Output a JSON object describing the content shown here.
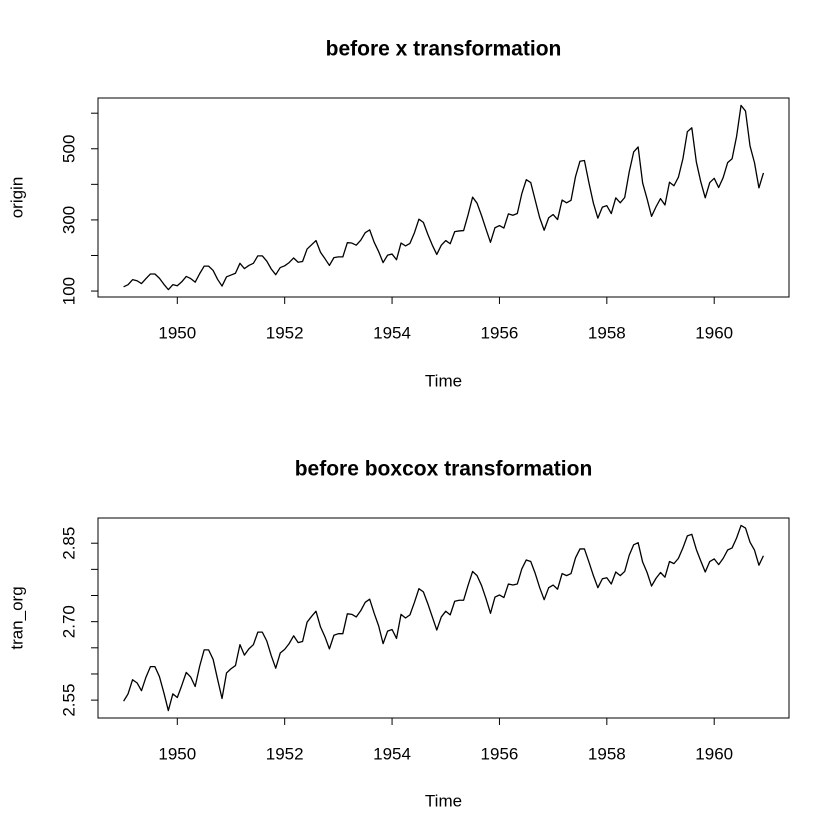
{
  "chart_data": [
    {
      "type": "line",
      "title": "before x transformation",
      "xlabel": "Time",
      "ylabel": "origin",
      "x": [
        1949,
        1949.083,
        1949.167,
        1949.25,
        1949.333,
        1949.417,
        1949.5,
        1949.583,
        1949.667,
        1949.75,
        1949.833,
        1949.917,
        1950,
        1950.083,
        1950.167,
        1950.25,
        1950.333,
        1950.417,
        1950.5,
        1950.583,
        1950.667,
        1950.75,
        1950.833,
        1950.917,
        1951,
        1951.083,
        1951.167,
        1951.25,
        1951.333,
        1951.417,
        1951.5,
        1951.583,
        1951.667,
        1951.75,
        1951.833,
        1951.917,
        1952,
        1952.083,
        1952.167,
        1952.25,
        1952.333,
        1952.417,
        1952.5,
        1952.583,
        1952.667,
        1952.75,
        1952.833,
        1952.917,
        1953,
        1953.083,
        1953.167,
        1953.25,
        1953.333,
        1953.417,
        1953.5,
        1953.583,
        1953.667,
        1953.75,
        1953.833,
        1953.917,
        1954,
        1954.083,
        1954.167,
        1954.25,
        1954.333,
        1954.417,
        1954.5,
        1954.583,
        1954.667,
        1954.75,
        1954.833,
        1954.917,
        1955,
        1955.083,
        1955.167,
        1955.25,
        1955.333,
        1955.417,
        1955.5,
        1955.583,
        1955.667,
        1955.75,
        1955.833,
        1955.917,
        1956,
        1956.083,
        1956.167,
        1956.25,
        1956.333,
        1956.417,
        1956.5,
        1956.583,
        1956.667,
        1956.75,
        1956.833,
        1956.917,
        1957,
        1957.083,
        1957.167,
        1957.25,
        1957.333,
        1957.417,
        1957.5,
        1957.583,
        1957.667,
        1957.75,
        1957.833,
        1957.917,
        1958,
        1958.083,
        1958.167,
        1958.25,
        1958.333,
        1958.417,
        1958.5,
        1958.583,
        1958.667,
        1958.75,
        1958.833,
        1958.917,
        1959,
        1959.083,
        1959.167,
        1959.25,
        1959.333,
        1959.417,
        1959.5,
        1959.583,
        1959.667,
        1959.75,
        1959.833,
        1959.917,
        1960,
        1960.083,
        1960.167,
        1960.25,
        1960.333,
        1960.417,
        1960.5,
        1960.583,
        1960.667,
        1960.75,
        1960.833,
        1960.917
      ],
      "values": [
        112,
        118,
        132,
        129,
        121,
        135,
        148,
        148,
        136,
        119,
        104,
        118,
        115,
        126,
        141,
        135,
        125,
        149,
        170,
        170,
        158,
        133,
        114,
        140,
        145,
        150,
        178,
        163,
        172,
        178,
        199,
        199,
        184,
        162,
        146,
        166,
        171,
        180,
        193,
        181,
        183,
        218,
        230,
        242,
        209,
        191,
        172,
        194,
        196,
        196,
        236,
        235,
        229,
        243,
        264,
        272,
        237,
        211,
        180,
        201,
        204,
        188,
        235,
        227,
        234,
        264,
        302,
        293,
        259,
        229,
        203,
        229,
        242,
        233,
        267,
        269,
        270,
        315,
        364,
        347,
        312,
        274,
        237,
        278,
        284,
        277,
        317,
        313,
        318,
        374,
        413,
        405,
        355,
        306,
        271,
        306,
        315,
        301,
        356,
        348,
        355,
        422,
        465,
        467,
        404,
        347,
        305,
        336,
        340,
        318,
        362,
        348,
        363,
        435,
        491,
        505,
        404,
        359,
        310,
        337,
        360,
        342,
        406,
        396,
        420,
        472,
        548,
        559,
        463,
        407,
        362,
        405,
        417,
        391,
        419,
        461,
        472,
        535,
        622,
        606,
        508,
        461,
        390,
        432
      ],
      "color": "#000000",
      "xlim": [
        1948.523,
        1961.393
      ],
      "xticks": [
        1950,
        1952,
        1954,
        1956,
        1958,
        1960
      ],
      "ylim": [
        83.28,
        642.72
      ],
      "yticks": [
        100,
        {
          "value": 200
        },
        300,
        {
          "value": 400
        },
        500,
        {
          "value": 600
        }
      ]
    },
    {
      "type": "line",
      "title": "before boxcox transformation",
      "xlabel": "Time",
      "ylabel": "tran_org",
      "x": [
        1949,
        1949.083,
        1949.167,
        1949.25,
        1949.333,
        1949.417,
        1949.5,
        1949.583,
        1949.667,
        1949.75,
        1949.833,
        1949.917,
        1950,
        1950.083,
        1950.167,
        1950.25,
        1950.333,
        1950.417,
        1950.5,
        1950.583,
        1950.667,
        1950.75,
        1950.833,
        1950.917,
        1951,
        1951.083,
        1951.167,
        1951.25,
        1951.333,
        1951.417,
        1951.5,
        1951.583,
        1951.667,
        1951.75,
        1951.833,
        1951.917,
        1952,
        1952.083,
        1952.167,
        1952.25,
        1952.333,
        1952.417,
        1952.5,
        1952.583,
        1952.667,
        1952.75,
        1952.833,
        1952.917,
        1953,
        1953.083,
        1953.167,
        1953.25,
        1953.333,
        1953.417,
        1953.5,
        1953.583,
        1953.667,
        1953.75,
        1953.833,
        1953.917,
        1954,
        1954.083,
        1954.167,
        1954.25,
        1954.333,
        1954.417,
        1954.5,
        1954.583,
        1954.667,
        1954.75,
        1954.833,
        1954.917,
        1955,
        1955.083,
        1955.167,
        1955.25,
        1955.333,
        1955.417,
        1955.5,
        1955.583,
        1955.667,
        1955.75,
        1955.833,
        1955.917,
        1956,
        1956.083,
        1956.167,
        1956.25,
        1956.333,
        1956.417,
        1956.5,
        1956.583,
        1956.667,
        1956.75,
        1956.833,
        1956.917,
        1957,
        1957.083,
        1957.167,
        1957.25,
        1957.333,
        1957.417,
        1957.5,
        1957.583,
        1957.667,
        1957.75,
        1957.833,
        1957.917,
        1958,
        1958.083,
        1958.167,
        1958.25,
        1958.333,
        1958.417,
        1958.5,
        1958.583,
        1958.667,
        1958.75,
        1958.833,
        1958.917,
        1959,
        1959.083,
        1959.167,
        1959.25,
        1959.333,
        1959.417,
        1959.5,
        1959.583,
        1959.667,
        1959.75,
        1959.833,
        1959.917,
        1960,
        1960.083,
        1960.167,
        1960.25,
        1960.333,
        1960.417,
        1960.5,
        1960.583,
        1960.667,
        1960.75,
        1960.833,
        1960.917
      ],
      "values": [
        2.548,
        2.562,
        2.589,
        2.583,
        2.568,
        2.594,
        2.614,
        2.614,
        2.595,
        2.564,
        2.53,
        2.562,
        2.555,
        2.578,
        2.603,
        2.594,
        2.576,
        2.615,
        2.646,
        2.646,
        2.628,
        2.59,
        2.553,
        2.602,
        2.61,
        2.616,
        2.656,
        2.636,
        2.648,
        2.656,
        2.68,
        2.68,
        2.663,
        2.635,
        2.611,
        2.64,
        2.647,
        2.658,
        2.673,
        2.66,
        2.662,
        2.699,
        2.71,
        2.72,
        2.69,
        2.671,
        2.648,
        2.674,
        2.677,
        2.677,
        2.715,
        2.714,
        2.709,
        2.721,
        2.737,
        2.743,
        2.716,
        2.692,
        2.658,
        2.682,
        2.685,
        2.668,
        2.714,
        2.707,
        2.713,
        2.737,
        2.763,
        2.757,
        2.734,
        2.709,
        2.684,
        2.709,
        2.72,
        2.713,
        2.739,
        2.741,
        2.741,
        2.77,
        2.796,
        2.788,
        2.769,
        2.744,
        2.716,
        2.747,
        2.751,
        2.746,
        2.772,
        2.77,
        2.772,
        2.801,
        2.818,
        2.815,
        2.792,
        2.765,
        2.742,
        2.765,
        2.77,
        2.762,
        2.792,
        2.788,
        2.792,
        2.822,
        2.839,
        2.839,
        2.814,
        2.788,
        2.765,
        2.782,
        2.784,
        2.772,
        2.795,
        2.788,
        2.796,
        2.827,
        2.847,
        2.851,
        2.814,
        2.794,
        2.768,
        2.783,
        2.794,
        2.785,
        2.815,
        2.811,
        2.821,
        2.841,
        2.864,
        2.867,
        2.838,
        2.816,
        2.795,
        2.815,
        2.82,
        2.809,
        2.821,
        2.837,
        2.841,
        2.86,
        2.884,
        2.879,
        2.852,
        2.837,
        2.808,
        2.826
      ],
      "color": "#000000",
      "xlim": [
        1948.523,
        1961.393
      ],
      "xticks": [
        1950,
        1952,
        1954,
        1956,
        1958,
        1960
      ],
      "ylim": [
        2.5158,
        2.8982
      ],
      "yticks": [
        {
          "value": 2.55,
          "label": "2.55"
        },
        {
          "value": 2.6
        },
        {
          "value": 2.65
        },
        {
          "value": 2.7,
          "label": "2.70"
        },
        {
          "value": 2.75
        },
        {
          "value": 2.8
        },
        {
          "value": 2.85,
          "label": "2.85"
        }
      ]
    }
  ]
}
